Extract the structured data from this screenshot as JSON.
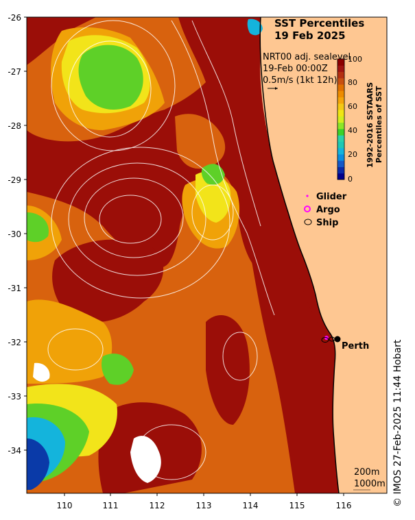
{
  "title": {
    "line1": "SST Percentiles",
    "line2": "19 Feb 2025"
  },
  "info": {
    "line1": "NRT00 adj. sealevel",
    "line2": "19-Feb 00:00Z",
    "line3": "0.5m/s (1kt 12h)"
  },
  "colorbar": {
    "label1": "1992-2016 SSTAARS",
    "label2": "Percentiles of SST",
    "ticks": [
      "100",
      "80",
      "60",
      "40",
      "20",
      "0"
    ],
    "colors": [
      "#00008b",
      "#0a2aa8",
      "#1458c8",
      "#0a8ee0",
      "#14b4dc",
      "#1ec8b4",
      "#2ad2aa",
      "#3cd228",
      "#8ce628",
      "#d2ee1e",
      "#f0e614",
      "#f5c814",
      "#f5a50a",
      "#ee8c00",
      "#e07000",
      "#c85010",
      "#b43010",
      "#a01410",
      "#8c0000"
    ]
  },
  "legend": {
    "items": [
      {
        "label": "Glider",
        "icon": "glider-marker",
        "color": "#ff00ff"
      },
      {
        "label": "Argo",
        "icon": "argo-marker",
        "color": "#ff00ff"
      },
      {
        "label": "Ship",
        "icon": "ship-marker",
        "color": "#000000"
      }
    ]
  },
  "axes": {
    "y_ticks": [
      "-26",
      "-27",
      "-28",
      "-29",
      "-30",
      "-31",
      "-32",
      "-33",
      "-34"
    ],
    "x_ticks": [
      "110",
      "111",
      "112",
      "113",
      "114",
      "115",
      "116"
    ]
  },
  "places": [
    {
      "label": "Perth"
    }
  ],
  "bathymetry": {
    "line1": "200m",
    "line2": "1000m"
  },
  "credit": "© IMOS 27-Feb-2025 11:44 Hobart",
  "colors": {
    "land": "#fec792",
    "warm_dark": "#9b0e08",
    "warm_mid": "#d8620e",
    "warm_light": "#f0a208",
    "yellow": "#f2e41a",
    "green": "#5ed028",
    "cyan": "#14b4dc",
    "blue": "#0a3aa8"
  }
}
